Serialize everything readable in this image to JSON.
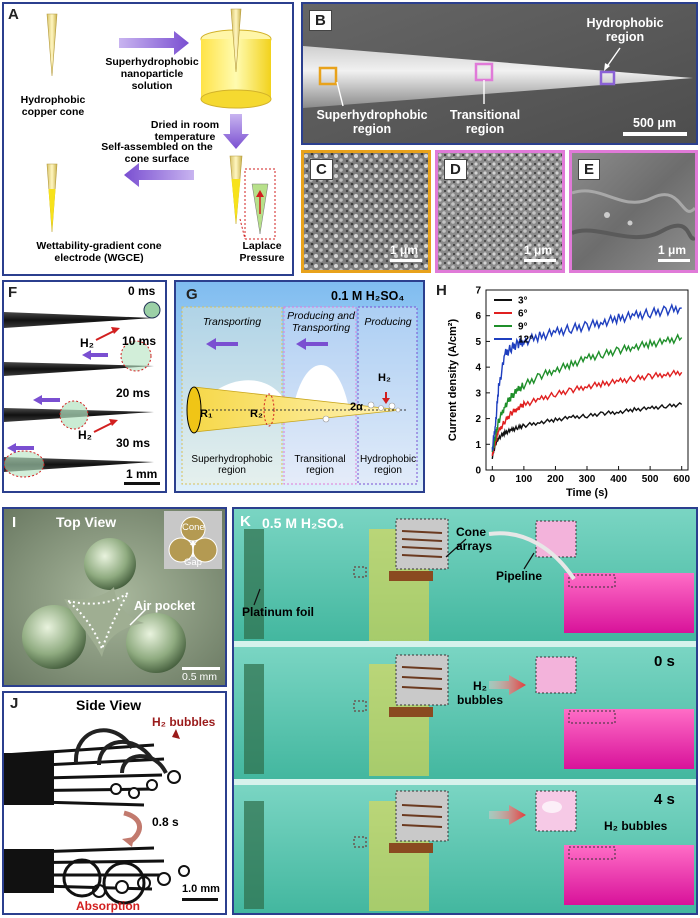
{
  "A": {
    "label": "A",
    "solution": "Superhydrophobic nanoparticle solution",
    "cone": "Hydrophobic copper cone",
    "dried": "Dried in room temperature",
    "self_assembled": "Self-assembled on the cone surface",
    "wgce": "Wettability-gradient cone electrode (WGCE)",
    "laplace": "Laplace Pressure"
  },
  "B": {
    "label": "B",
    "hydrophobic": "Hydrophobic region",
    "superhydrophobic": "Superhydrophobic region",
    "transitional": "Transitional region",
    "scale": "500 μm"
  },
  "C": {
    "label": "C",
    "scale": "1 μm"
  },
  "D": {
    "label": "D",
    "scale": "1 μm"
  },
  "E": {
    "label": "E",
    "scale": "1 μm"
  },
  "F": {
    "label": "F",
    "times": [
      "0 ms",
      "10 ms",
      "20 ms",
      "30 ms"
    ],
    "h2": "H₂",
    "scale": "1 mm"
  },
  "G": {
    "label": "G",
    "title": "0.1 M H₂SO₄",
    "transporting": "Transporting",
    "producing_transporting": "Producing and Transporting",
    "producing": "Producing",
    "h2": "H₂",
    "r1": "R₁",
    "r2": "R₂",
    "alpha": "2α",
    "region1": "Superhydrophobic region",
    "region2": "Transitional region",
    "region3": "Hydrophobic region"
  },
  "H": {
    "label": "H"
  },
  "I": {
    "label": "I",
    "title": "Top View",
    "cone": "Cone",
    "gap": "Gap",
    "air_pocket": "Air pocket",
    "scale": "0.5 mm"
  },
  "J": {
    "label": "J",
    "title": "Side View",
    "bubbles": "H₂ bubbles",
    "time": "0.8 s",
    "absorption": "Absorption",
    "scale": "1.0 mm"
  },
  "K": {
    "label": "K",
    "title": "0.5 M H₂SO₄",
    "cone_arrays": "Cone arrays",
    "pipeline": "Pipeline",
    "platinum": "Platinum foil",
    "time_0": "0 s",
    "h2_bubbles_mid": "H₂ bubbles",
    "time_4": "4 s",
    "h2_bubbles_bottom": "H₂ bubbles"
  },
  "colors": {
    "purple": "#8b63d6",
    "border_blue": "#2b3f8e",
    "orange": "#e8a21b",
    "pink": "#e07ad8",
    "magenta": "#e0169c",
    "teal": "#4cc6ae"
  },
  "chart_data": {
    "type": "line",
    "title": "",
    "xlabel": "Time (s)",
    "ylabel": "Current density (A/cm²)",
    "xlim": [
      -20,
      620
    ],
    "ylim": [
      0,
      7
    ],
    "xticks": [
      0,
      100,
      200,
      300,
      400,
      500,
      600
    ],
    "yticks": [
      0,
      1,
      2,
      3,
      4,
      5,
      6,
      7
    ],
    "legend_position": "top-left",
    "x": [
      0,
      10,
      20,
      40,
      60,
      80,
      100,
      150,
      200,
      250,
      300,
      350,
      400,
      450,
      500,
      550,
      600
    ],
    "series": [
      {
        "name": "3°",
        "color": "#111111",
        "values": [
          0.5,
          1.0,
          1.25,
          1.45,
          1.55,
          1.65,
          1.72,
          1.85,
          1.95,
          2.05,
          2.1,
          2.2,
          2.25,
          2.35,
          2.4,
          2.48,
          2.55
        ]
      },
      {
        "name": "6°",
        "color": "#e02020",
        "values": [
          0.6,
          1.1,
          1.5,
          1.9,
          2.2,
          2.4,
          2.55,
          2.75,
          2.95,
          3.1,
          3.25,
          3.35,
          3.45,
          3.55,
          3.65,
          3.72,
          3.8
        ]
      },
      {
        "name": "9°",
        "color": "#1f8f2a",
        "values": [
          0.7,
          1.3,
          1.9,
          2.5,
          2.85,
          3.1,
          3.3,
          3.65,
          3.9,
          4.1,
          4.35,
          4.5,
          4.65,
          4.8,
          4.9,
          5.0,
          5.15
        ]
      },
      {
        "name": "12°",
        "color": "#1f3fbf",
        "values": [
          0.8,
          1.8,
          3.2,
          4.5,
          4.75,
          4.9,
          5.0,
          5.2,
          5.35,
          5.5,
          5.6,
          5.75,
          5.9,
          6.0,
          6.1,
          6.2,
          6.3
        ]
      }
    ]
  }
}
